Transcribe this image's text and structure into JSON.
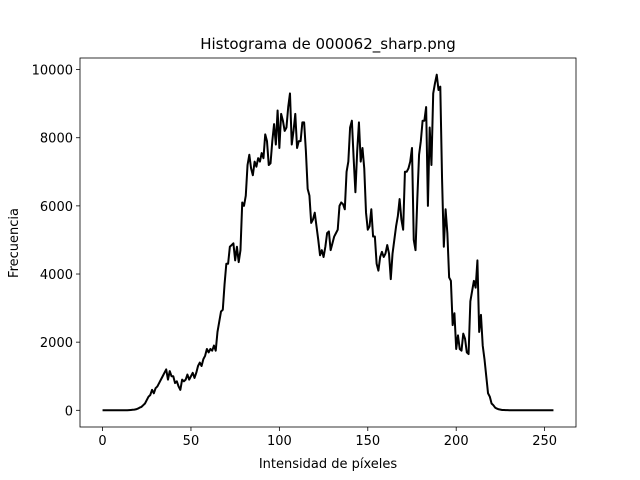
{
  "chart_data": {
    "type": "line",
    "title": "Histograma de 000062_sharp.png",
    "xlabel": "Intensidad de píxeles",
    "ylabel": "Frecuencia",
    "color": "#000000",
    "x": [
      0,
      1,
      2,
      3,
      4,
      5,
      6,
      7,
      8,
      9,
      10,
      11,
      12,
      13,
      14,
      15,
      16,
      17,
      18,
      19,
      20,
      21,
      22,
      23,
      24,
      25,
      26,
      27,
      28,
      29,
      30,
      31,
      32,
      33,
      34,
      35,
      36,
      37,
      38,
      39,
      40,
      41,
      42,
      43,
      44,
      45,
      46,
      47,
      48,
      49,
      50,
      51,
      52,
      53,
      54,
      55,
      56,
      57,
      58,
      59,
      60,
      61,
      62,
      63,
      64,
      65,
      66,
      67,
      68,
      69,
      70,
      71,
      72,
      73,
      74,
      75,
      76,
      77,
      78,
      79,
      80,
      81,
      82,
      83,
      84,
      85,
      86,
      87,
      88,
      89,
      90,
      91,
      92,
      93,
      94,
      95,
      96,
      97,
      98,
      99,
      100,
      101,
      102,
      103,
      104,
      105,
      106,
      107,
      108,
      109,
      110,
      111,
      112,
      113,
      114,
      115,
      116,
      117,
      118,
      119,
      120,
      121,
      122,
      123,
      124,
      125,
      126,
      127,
      128,
      129,
      130,
      131,
      132,
      133,
      134,
      135,
      136,
      137,
      138,
      139,
      140,
      141,
      142,
      143,
      144,
      145,
      146,
      147,
      148,
      149,
      150,
      151,
      152,
      153,
      154,
      155,
      156,
      157,
      158,
      159,
      160,
      161,
      162,
      163,
      164,
      165,
      166,
      167,
      168,
      169,
      170,
      171,
      172,
      173,
      174,
      175,
      176,
      177,
      178,
      179,
      180,
      181,
      182,
      183,
      184,
      185,
      186,
      187,
      188,
      189,
      190,
      191,
      192,
      193,
      194,
      195,
      196,
      197,
      198,
      199,
      200,
      201,
      202,
      203,
      204,
      205,
      206,
      207,
      208,
      209,
      210,
      211,
      212,
      213,
      214,
      215,
      216,
      217,
      218,
      219,
      220,
      221,
      222,
      223,
      224,
      225,
      226,
      227,
      228,
      229,
      230,
      231,
      232,
      233,
      234,
      235,
      236,
      237,
      238,
      239,
      240,
      241,
      242,
      243,
      244,
      245,
      246,
      247,
      248,
      249,
      250,
      251,
      252,
      253,
      254,
      255
    ],
    "values": [
      0,
      0,
      0,
      0,
      0,
      0,
      0,
      0,
      0,
      0,
      0,
      0,
      0,
      0,
      0,
      5,
      10,
      15,
      20,
      30,
      50,
      80,
      100,
      150,
      200,
      300,
      400,
      450,
      600,
      500,
      650,
      700,
      800,
      900,
      1000,
      1100,
      1200,
      900,
      1150,
      1000,
      1000,
      800,
      850,
      700,
      600,
      900,
      850,
      900,
      1050,
      900,
      1000,
      1100,
      950,
      1100,
      1300,
      1400,
      1300,
      1500,
      1600,
      1800,
      1700,
      1800,
      1750,
      1900,
      1750,
      2300,
      2600,
      2900,
      2950,
      3700,
      4300,
      4300,
      4800,
      4850,
      4900,
      4400,
      4800,
      4350,
      4700,
      6100,
      6000,
      6300,
      7200,
      7500,
      7100,
      6900,
      7300,
      7150,
      7400,
      7300,
      7550,
      7400,
      8100,
      7900,
      7200,
      7250,
      7900,
      8400,
      7800,
      8800,
      7700,
      8700,
      8500,
      8200,
      8300,
      8900,
      9300,
      7800,
      8200,
      8700,
      7700,
      7900,
      7900,
      8450,
      8450,
      7600,
      6500,
      6300,
      5500,
      5600,
      5800,
      5400,
      5000,
      4550,
      4700,
      4500,
      4800,
      5200,
      5250,
      4700,
      4900,
      5100,
      5200,
      5300,
      6000,
      6100,
      6050,
      5900,
      7000,
      7300,
      8300,
      8500,
      7400,
      6400,
      7600,
      8450,
      7300,
      7700,
      7100,
      5800,
      5300,
      5400,
      5900,
      5100,
      5100,
      4300,
      4100,
      4500,
      4650,
      4500,
      4600,
      4850,
      4600,
      3850,
      4600,
      5000,
      5400,
      5700,
      6200,
      5600,
      5300,
      7000,
      7000,
      7100,
      7300,
      7700,
      5000,
      4700,
      6200,
      7500,
      7900,
      8500,
      8500,
      8900,
      6000,
      8300,
      7200,
      9300,
      9600,
      9850,
      9400,
      9500,
      6800,
      4800,
      5900,
      5200,
      3900,
      3800,
      2500,
      2850,
      1800,
      2200,
      1800,
      1750,
      2250,
      2100,
      1700,
      1650,
      3200,
      3500,
      3800,
      3600,
      4400,
      2300,
      2800,
      1900,
      1500,
      1000,
      500,
      400,
      200,
      150,
      80,
      50,
      30,
      20,
      10,
      10,
      5,
      5,
      0,
      0,
      0,
      0,
      0,
      0,
      0,
      0,
      0,
      0,
      0,
      0,
      0,
      0,
      0,
      0,
      0,
      0,
      0,
      0,
      0,
      0,
      0,
      0,
      0,
      0
    ],
    "xlim": [
      -12.75,
      267.75
    ],
    "ylim": [
      -490,
      10340
    ],
    "xticks": [
      0,
      50,
      100,
      150,
      200,
      250
    ],
    "yticks": [
      0,
      2000,
      4000,
      6000,
      8000,
      10000
    ]
  }
}
